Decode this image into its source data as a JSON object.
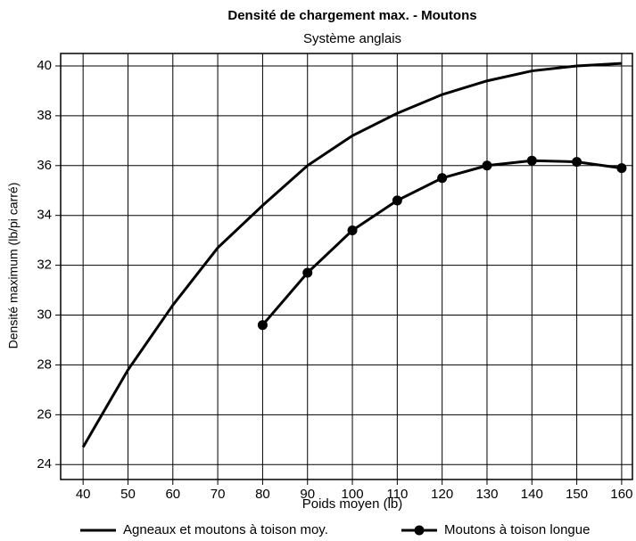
{
  "chart_data": {
    "type": "line",
    "title": "Densité de chargement max. - Moutons",
    "subtitle": "Système anglais",
    "x_label": "Poids moyen (lb)",
    "y_label": "Densité maximum (lb/pi carré)",
    "x": [
      40,
      50,
      60,
      70,
      80,
      90,
      100,
      110,
      120,
      130,
      140,
      150,
      160
    ],
    "series": [
      {
        "name": "Agneaux et moutons à toison moy.",
        "color": "#000000",
        "marker": false,
        "values": [
          24.7,
          27.8,
          30.4,
          32.7,
          34.4,
          36.0,
          37.2,
          38.1,
          38.85,
          39.4,
          39.8,
          40.0,
          40.1
        ]
      },
      {
        "name": "Moutons à toison longue",
        "color": "#000000",
        "marker": true,
        "values": [
          null,
          null,
          null,
          null,
          29.6,
          31.7,
          33.4,
          34.6,
          35.5,
          36.0,
          36.2,
          36.15,
          35.9
        ]
      }
    ],
    "xlim": [
      35,
      162.4
    ],
    "ylim": [
      23.4,
      40.5
    ],
    "xticks": [
      40,
      50,
      60,
      70,
      80,
      90,
      100,
      110,
      120,
      130,
      140,
      150,
      160
    ],
    "yticks": [
      24,
      26,
      28,
      30,
      32,
      34,
      36,
      38,
      40
    ],
    "grid": true,
    "legend": "bottom"
  }
}
